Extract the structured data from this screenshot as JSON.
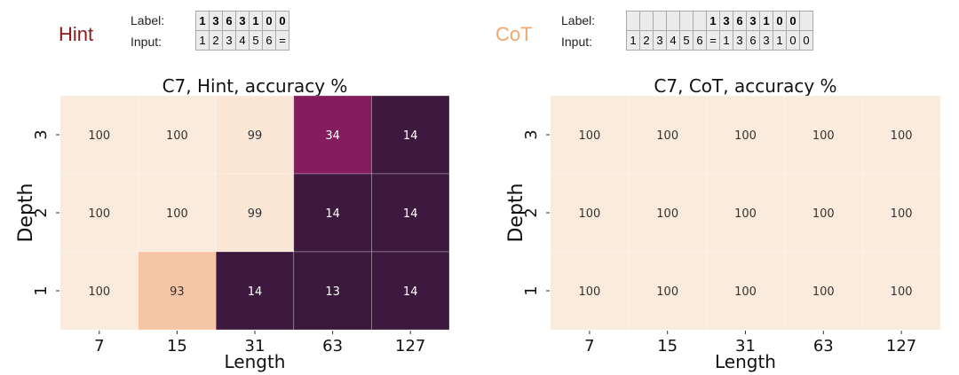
{
  "panels": [
    {
      "method": "Hint",
      "method_color": "#8b1a1a",
      "label_caption": "Label:",
      "input_caption": "Input:",
      "label_tokens": [
        "1",
        "3",
        "6",
        "3",
        "1",
        "0",
        "0"
      ],
      "input_tokens": [
        "1",
        "2",
        "3",
        "4",
        "5",
        "6",
        "="
      ],
      "label_offset": 0
    },
    {
      "method": "CoT",
      "method_color": "#f4a76b",
      "label_caption": "Label:",
      "input_caption": "Input:",
      "label_tokens": [
        "",
        "",
        "",
        "",
        "",
        "",
        "1",
        "3",
        "6",
        "3",
        "1",
        "0",
        "0",
        ""
      ],
      "input_tokens": [
        "1",
        "2",
        "3",
        "4",
        "5",
        "6",
        "=",
        "1",
        "3",
        "6",
        "3",
        "1",
        "0",
        "0"
      ],
      "label_offset": 0
    }
  ],
  "chart_data": [
    {
      "type": "heatmap",
      "title": "C7, Hint, accuracy %",
      "xlabel": "Length",
      "ylabel": "Depth",
      "x_categories": [
        "7",
        "15",
        "31",
        "63",
        "127"
      ],
      "y_categories": [
        "3",
        "2",
        "1"
      ],
      "values": [
        [
          100,
          100,
          99,
          34,
          14
        ],
        [
          100,
          100,
          99,
          14,
          14
        ],
        [
          100,
          93,
          14,
          13,
          14
        ]
      ],
      "vmin": 0,
      "vmax": 100,
      "colormap": "rocket"
    },
    {
      "type": "heatmap",
      "title": "C7, CoT, accuracy %",
      "xlabel": "Length",
      "ylabel": "Depth",
      "x_categories": [
        "7",
        "15",
        "31",
        "63",
        "127"
      ],
      "y_categories": [
        "3",
        "2",
        "1"
      ],
      "values": [
        [
          100,
          100,
          100,
          100,
          100
        ],
        [
          100,
          100,
          100,
          100,
          100
        ],
        [
          100,
          100,
          100,
          100,
          100
        ]
      ],
      "vmin": 0,
      "vmax": 100,
      "colormap": "rocket"
    }
  ]
}
